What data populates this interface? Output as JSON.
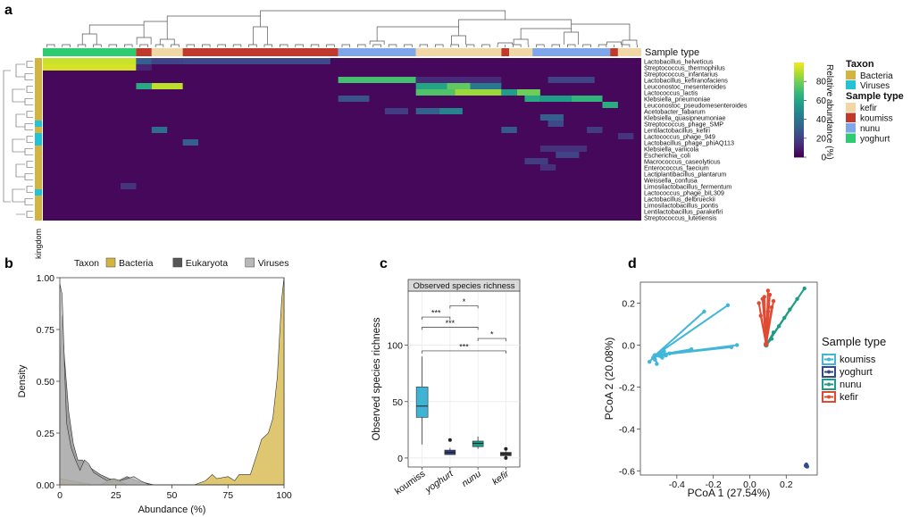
{
  "panel_letters": [
    "a",
    "b",
    "c",
    "d"
  ],
  "colors": {
    "bacteria": "#d4b441",
    "viruses": "#22c3d6",
    "eukaryota": "#555555",
    "viruses_density": "#b8b8b8",
    "kefir": "#f1d7a5",
    "koumiss": "#c0392b",
    "nunu": "#7ea6e8",
    "yoghurt": "#2ecc71",
    "koumiss_box": "#3fb3d3",
    "yoghurt_box": "#2e3d7a",
    "nunu_box": "#1d9a87",
    "kefir_box": "#333333",
    "pcoa_koumiss": "#41b6d9",
    "pcoa_yoghurt": "#34468c",
    "pcoa_nunu": "#1f9c88",
    "pcoa_kefir": "#e04a33"
  },
  "chart_data": [
    {
      "panel": "a",
      "type": "heatmap",
      "title": "",
      "row_annotation_label": "kingdom",
      "column_annotation_label": "Sample type",
      "colorbar": {
        "label": "Relative abundance (%)",
        "ticks": [
          0,
          20,
          40,
          60,
          80
        ],
        "range": [
          0,
          100
        ]
      },
      "legend": {
        "taxon_title": "Taxon",
        "taxon_entries": [
          "Bacteria",
          "Viruses"
        ],
        "sample_title": "Sample type",
        "sample_entries": [
          "kefir",
          "koumiss",
          "nunu",
          "yoghurt"
        ]
      },
      "rows": [
        {
          "name": "Lactobacillus_helveticus",
          "kingdom": "Bacteria"
        },
        {
          "name": "Streptococcus_thermophilus",
          "kingdom": "Bacteria"
        },
        {
          "name": "Streptococcus_infantarius",
          "kingdom": "Bacteria"
        },
        {
          "name": "Lactobacillus_kefiranofaciens",
          "kingdom": "Bacteria"
        },
        {
          "name": "Leuconostoc_mesenteroides",
          "kingdom": "Bacteria"
        },
        {
          "name": "Lactococcus_lactis",
          "kingdom": "Bacteria"
        },
        {
          "name": "Klebsiella_pneumoniae",
          "kingdom": "Bacteria"
        },
        {
          "name": "Leuconostoc_pseudomesenteroides",
          "kingdom": "Bacteria"
        },
        {
          "name": "Acetobacter_fabarum",
          "kingdom": "Bacteria"
        },
        {
          "name": "Klebsiella_quasipneumoniae",
          "kingdom": "Bacteria"
        },
        {
          "name": "Streptococcus_phage_SMP",
          "kingdom": "Viruses"
        },
        {
          "name": "Lentilactobacillus_kefiri",
          "kingdom": "Bacteria"
        },
        {
          "name": "Lactococcus_phage_949",
          "kingdom": "Viruses"
        },
        {
          "name": "Lactobacillus_phage_phiAQ113",
          "kingdom": "Viruses"
        },
        {
          "name": "Klebsiella_variicola",
          "kingdom": "Bacteria"
        },
        {
          "name": "Escherichia_coli",
          "kingdom": "Bacteria"
        },
        {
          "name": "Macrococcus_caseolyticus",
          "kingdom": "Bacteria"
        },
        {
          "name": "Enterococcus_faecium",
          "kingdom": "Bacteria"
        },
        {
          "name": "Lactiplantibacillus_plantarum",
          "kingdom": "Bacteria"
        },
        {
          "name": "Weissella_confusa",
          "kingdom": "Bacteria"
        },
        {
          "name": "Limosilactobacillus_fermentum",
          "kingdom": "Bacteria"
        },
        {
          "name": "Lactococcus_phage_bIL309",
          "kingdom": "Viruses"
        },
        {
          "name": "Lactobacillus_delbrueckii",
          "kingdom": "Bacteria"
        },
        {
          "name": "Limosilactobacillus_pontis",
          "kingdom": "Bacteria"
        },
        {
          "name": "Lentilactobacillus_parakefiri",
          "kingdom": "Bacteria"
        },
        {
          "name": "Streptococcus_lutetiensis",
          "kingdom": "Bacteria"
        }
      ],
      "column_groups": [
        {
          "type": "yoghurt",
          "n": 12
        },
        {
          "type": "koumiss",
          "n": 2
        },
        {
          "type": "kefir",
          "n": 4
        },
        {
          "type": "koumiss",
          "n": 20
        },
        {
          "type": "nunu",
          "n": 10
        },
        {
          "type": "kefir",
          "n": 11
        },
        {
          "type": "koumiss",
          "n": 1
        },
        {
          "type": "kefir",
          "n": 3
        },
        {
          "type": "nunu",
          "n": 10
        },
        {
          "type": "koumiss",
          "n": 1
        },
        {
          "type": "kefir",
          "n": 3
        }
      ],
      "blocks": [
        {
          "row": 0,
          "c0": 0,
          "c1": 11,
          "v": 92
        },
        {
          "row": 0,
          "c0": 14,
          "c1": 17,
          "v": 20
        },
        {
          "row": 0,
          "c0": 18,
          "c1": 36,
          "v": 22
        },
        {
          "row": 0,
          "c0": 12,
          "c1": 13,
          "v": 30
        },
        {
          "row": 1,
          "c0": 0,
          "c1": 11,
          "v": 94
        },
        {
          "row": 1,
          "c0": 12,
          "c1": 13,
          "v": 10
        },
        {
          "row": 3,
          "c0": 38,
          "c1": 47,
          "v": 70
        },
        {
          "row": 3,
          "c0": 48,
          "c1": 58,
          "v": 12
        },
        {
          "row": 3,
          "c0": 65,
          "c1": 70,
          "v": 20
        },
        {
          "row": 4,
          "c0": 12,
          "c1": 13,
          "v": 60
        },
        {
          "row": 4,
          "c0": 14,
          "c1": 17,
          "v": 90
        },
        {
          "row": 4,
          "c0": 48,
          "c1": 51,
          "v": 58
        },
        {
          "row": 4,
          "c0": 52,
          "c1": 54,
          "v": 75
        },
        {
          "row": 4,
          "c0": 55,
          "c1": 58,
          "v": 40
        },
        {
          "row": 5,
          "c0": 48,
          "c1": 52,
          "v": 72
        },
        {
          "row": 5,
          "c0": 53,
          "c1": 58,
          "v": 85
        },
        {
          "row": 5,
          "c0": 59,
          "c1": 60,
          "v": 55
        },
        {
          "row": 5,
          "c0": 61,
          "c1": 63,
          "v": 78
        },
        {
          "row": 6,
          "c0": 64,
          "c1": 67,
          "v": 55
        },
        {
          "row": 6,
          "c0": 68,
          "c1": 71,
          "v": 65
        },
        {
          "row": 6,
          "c0": 38,
          "c1": 41,
          "v": 25
        },
        {
          "row": 6,
          "c0": 62,
          "c1": 63,
          "v": 60
        },
        {
          "row": 7,
          "c0": 72,
          "c1": 73,
          "v": 62
        },
        {
          "row": 8,
          "c0": 48,
          "c1": 50,
          "v": 30
        },
        {
          "row": 8,
          "c0": 51,
          "c1": 53,
          "v": 45
        },
        {
          "row": 8,
          "c0": 44,
          "c1": 46,
          "v": 18
        },
        {
          "row": 9,
          "c0": 64,
          "c1": 66,
          "v": 30
        },
        {
          "row": 10,
          "c0": 65,
          "c1": 66,
          "v": 22
        },
        {
          "row": 11,
          "c0": 14,
          "c1": 15,
          "v": 35
        },
        {
          "row": 11,
          "c0": 59,
          "c1": 60,
          "v": 28
        },
        {
          "row": 11,
          "c0": 70,
          "c1": 71,
          "v": 18
        },
        {
          "row": 12,
          "c0": 74,
          "c1": 75,
          "v": 15
        },
        {
          "row": 13,
          "c0": 18,
          "c1": 19,
          "v": 30
        },
        {
          "row": 14,
          "c0": 64,
          "c1": 69,
          "v": 14
        },
        {
          "row": 15,
          "c0": 66,
          "c1": 68,
          "v": 20
        },
        {
          "row": 16,
          "c0": 62,
          "c1": 64,
          "v": 18
        },
        {
          "row": 17,
          "c0": 64,
          "c1": 65,
          "v": 14
        },
        {
          "row": 20,
          "c0": 10,
          "c1": 11,
          "v": 15
        }
      ]
    },
    {
      "panel": "b",
      "type": "area",
      "title": "",
      "xlabel": "Abundance (%)",
      "ylabel": "Density",
      "xlim": [
        0,
        100
      ],
      "ylim": [
        0,
        1
      ],
      "xticks": [
        0,
        25,
        50,
        75,
        100
      ],
      "yticks": [
        0.0,
        0.25,
        0.5,
        0.75,
        1.0
      ],
      "legend_title": "Taxon",
      "legend_entries": [
        "Bacteria",
        "Eukaryota",
        "Viruses"
      ],
      "series": [
        {
          "name": "Bacteria",
          "x": [
            0,
            5,
            10,
            15,
            18,
            20,
            25,
            28,
            30,
            35,
            40,
            50,
            60,
            65,
            68,
            70,
            75,
            78,
            80,
            85,
            88,
            90,
            93,
            95,
            97,
            98,
            99,
            100
          ],
          "y": [
            0.03,
            0.02,
            0.01,
            0.0,
            0.0,
            0.01,
            0.02,
            0.01,
            0.0,
            0.0,
            0.0,
            0.0,
            0.0,
            0.02,
            0.05,
            0.03,
            0.04,
            0.02,
            0.05,
            0.05,
            0.15,
            0.22,
            0.25,
            0.32,
            0.52,
            0.72,
            0.9,
            1.0
          ]
        },
        {
          "name": "Eukaryota",
          "x": [
            0,
            1,
            2,
            4,
            6,
            8,
            10,
            14,
            18,
            22,
            26,
            30,
            34,
            38,
            42,
            50,
            100
          ],
          "y": [
            0.55,
            0.82,
            0.62,
            0.35,
            0.2,
            0.12,
            0.12,
            0.08,
            0.05,
            0.03,
            0.02,
            0.04,
            0.02,
            0.01,
            0.0,
            0.0,
            0.0
          ]
        },
        {
          "name": "Viruses",
          "x": [
            0,
            1,
            2,
            3,
            5,
            7,
            9,
            11,
            13,
            15,
            18,
            21,
            24,
            27,
            30,
            33,
            36,
            40,
            50,
            100
          ],
          "y": [
            0.97,
            0.92,
            0.6,
            0.3,
            0.18,
            0.12,
            0.07,
            0.12,
            0.1,
            0.06,
            0.04,
            0.02,
            0.03,
            0.02,
            0.03,
            0.04,
            0.02,
            0.0,
            0.0,
            0.0
          ]
        }
      ]
    },
    {
      "panel": "c",
      "type": "box",
      "title": "Observed species richness",
      "xlabel": "",
      "ylabel": "Observed species richness",
      "ylim": [
        -8,
        148
      ],
      "yticks": [
        0,
        50,
        100
      ],
      "categories": [
        "koumiss",
        "yoghurt",
        "nunu",
        "kefir"
      ],
      "boxes": [
        {
          "category": "koumiss",
          "min": 12,
          "q1": 36,
          "median": 46,
          "q3": 63,
          "max": 90,
          "outliers": []
        },
        {
          "category": "yoghurt",
          "min": 3,
          "q1": 3,
          "median": 5,
          "q3": 7,
          "max": 9,
          "outliers": [
            16
          ]
        },
        {
          "category": "nunu",
          "min": 8,
          "q1": 10,
          "median": 13,
          "q3": 15,
          "max": 19,
          "outliers": []
        },
        {
          "category": "kefir",
          "min": 1,
          "q1": 2,
          "median": 4,
          "q3": 5,
          "max": 6,
          "outliers": [
            8,
            0
          ]
        }
      ],
      "significance": [
        {
          "from": "yoghurt",
          "to": "nunu",
          "label": "*",
          "y": 135
        },
        {
          "from": "koumiss",
          "to": "yoghurt",
          "label": "***",
          "y": 125
        },
        {
          "from": "koumiss",
          "to": "nunu",
          "label": "***",
          "y": 116
        },
        {
          "from": "nunu",
          "to": "kefir",
          "label": "*",
          "y": 106
        },
        {
          "from": "koumiss",
          "to": "kefir",
          "label": "***",
          "y": 95
        }
      ]
    },
    {
      "panel": "d",
      "type": "scatter",
      "title": "",
      "xlabel": "PCoA 1 (27.54%)",
      "ylabel": "PCoA 2 (20.08%)",
      "xlim": [
        -0.6,
        0.37
      ],
      "ylim": [
        -0.62,
        0.3
      ],
      "xticks": [
        -0.4,
        -0.2,
        0.0,
        0.2
      ],
      "yticks": [
        -0.6,
        -0.4,
        -0.2,
        0.0,
        0.2
      ],
      "legend_title": "Sample type",
      "legend_entries": [
        "koumiss",
        "yoghurt",
        "nunu",
        "kefir"
      ],
      "groups": [
        {
          "name": "koumiss",
          "centroid": [
            -0.52,
            -0.05
          ],
          "points": [
            [
              -0.53,
              -0.06
            ],
            [
              -0.52,
              -0.07
            ],
            [
              -0.5,
              -0.05
            ],
            [
              -0.55,
              -0.08
            ],
            [
              -0.49,
              -0.04
            ],
            [
              -0.48,
              -0.06
            ],
            [
              -0.46,
              -0.05
            ],
            [
              -0.47,
              -0.03
            ],
            [
              -0.25,
              0.16
            ],
            [
              -0.12,
              0.19
            ],
            [
              -0.07,
              0.0
            ],
            [
              -0.1,
              -0.01
            ],
            [
              -0.32,
              -0.02
            ],
            [
              -0.51,
              -0.09
            ],
            [
              -0.44,
              -0.04
            ]
          ]
        },
        {
          "name": "yoghurt",
          "centroid": [
            0.31,
            -0.575
          ],
          "points": [
            [
              0.31,
              -0.57
            ],
            [
              0.315,
              -0.58
            ]
          ]
        },
        {
          "name": "nunu",
          "centroid": [
            0.09,
            0.0
          ],
          "points": [
            [
              0.13,
              0.06
            ],
            [
              0.16,
              0.09
            ],
            [
              0.19,
              0.13
            ],
            [
              0.22,
              0.17
            ],
            [
              0.26,
              0.22
            ],
            [
              0.3,
              0.27
            ],
            [
              0.12,
              0.03
            ]
          ]
        },
        {
          "name": "kefir",
          "centroid": [
            0.09,
            0.005
          ],
          "points": [
            [
              0.05,
              0.2
            ],
            [
              0.08,
              0.23
            ],
            [
              0.1,
              0.16
            ],
            [
              0.12,
              0.18
            ],
            [
              0.06,
              0.14
            ],
            [
              0.11,
              0.24
            ],
            [
              0.09,
              0.12
            ],
            [
              0.07,
              0.22
            ],
            [
              0.13,
              0.21
            ],
            [
              0.1,
              0.26
            ]
          ]
        }
      ]
    }
  ]
}
